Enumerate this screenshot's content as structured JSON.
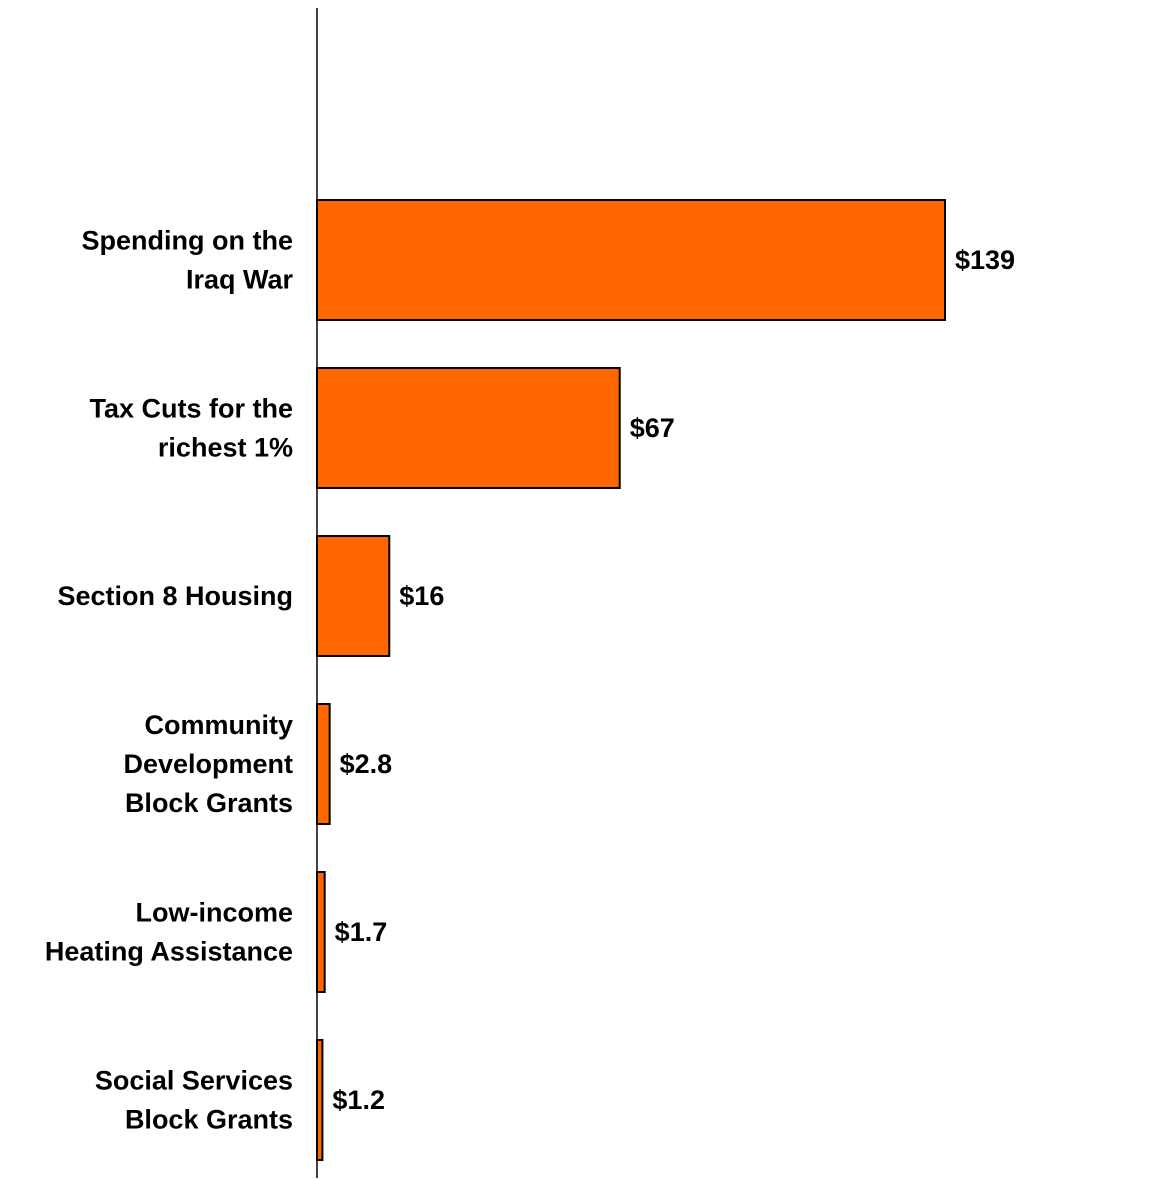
{
  "chart_data": {
    "type": "bar",
    "orientation": "horizontal",
    "categories": [
      "Spending on the Iraq War",
      "Tax Cuts for the richest 1%",
      "Section 8 Housing",
      "Community Development Block Grants",
      "Low-income Heating Assistance",
      "Social Services Block Grants"
    ],
    "category_label_lines": [
      [
        "Spending on the",
        "Iraq War"
      ],
      [
        "Tax Cuts for the",
        "richest 1%"
      ],
      [
        "Section 8 Housing"
      ],
      [
        "Community",
        "Development",
        "Block Grants"
      ],
      [
        "Low-income",
        "Heating Assistance"
      ],
      [
        "Social Services",
        "Block Grants"
      ]
    ],
    "values": [
      139,
      67,
      16,
      2.8,
      1.7,
      1.2
    ],
    "data_labels": [
      "$139",
      "$67",
      "$16",
      "$2.8",
      "$1.7",
      "$1.2"
    ],
    "title": "",
    "xlabel": "",
    "ylabel": "",
    "xlim": [
      0,
      180
    ],
    "grid": false,
    "legend": "none",
    "colors": {
      "bar_fill": "#ff6600",
      "bar_stroke": "#000000",
      "axis": "#000000"
    }
  }
}
